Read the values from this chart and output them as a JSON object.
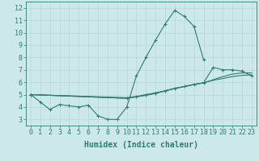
{
  "line1_x": [
    0,
    1,
    2,
    3,
    4,
    5,
    6,
    7,
    8,
    9,
    10,
    11,
    12,
    13,
    14,
    15,
    16,
    17,
    18
  ],
  "line1_y": [
    5.0,
    4.4,
    3.8,
    4.2,
    4.1,
    4.0,
    4.15,
    3.3,
    3.0,
    3.0,
    4.0,
    6.5,
    8.0,
    9.4,
    10.7,
    11.8,
    11.3,
    10.5,
    7.8
  ],
  "line2_x": [
    0,
    10,
    11,
    12,
    13,
    14,
    15,
    16,
    17,
    18,
    19,
    20,
    21,
    22,
    23
  ],
  "line2_y": [
    5.0,
    4.75,
    4.85,
    5.0,
    5.15,
    5.3,
    5.5,
    5.65,
    5.8,
    5.95,
    6.15,
    6.3,
    6.45,
    6.55,
    6.6
  ],
  "line3_x": [
    0,
    10,
    11,
    12,
    13,
    14,
    15,
    16,
    17,
    18,
    19,
    20,
    21,
    22,
    23
  ],
  "line3_y": [
    5.0,
    4.7,
    4.82,
    4.95,
    5.1,
    5.3,
    5.5,
    5.65,
    5.82,
    5.95,
    6.2,
    6.45,
    6.65,
    6.75,
    6.75
  ],
  "line4_x": [
    0,
    10,
    11,
    12,
    13,
    14,
    15,
    16,
    17,
    18,
    19,
    20,
    21,
    22,
    23
  ],
  "line4_y": [
    5.0,
    4.7,
    4.82,
    4.95,
    5.1,
    5.3,
    5.5,
    5.65,
    5.82,
    5.95,
    7.2,
    7.0,
    7.0,
    6.9,
    6.5
  ],
  "color": "#2e7d6e",
  "bg_color": "#cce8e8",
  "grid_color": "#b8d8d8",
  "xlabel": "Humidex (Indice chaleur)",
  "xlim": [
    -0.5,
    23.5
  ],
  "ylim": [
    2.5,
    12.5
  ],
  "xticks": [
    0,
    1,
    2,
    3,
    4,
    5,
    6,
    7,
    8,
    9,
    10,
    11,
    12,
    13,
    14,
    15,
    16,
    17,
    18,
    19,
    20,
    21,
    22,
    23
  ],
  "yticks": [
    3,
    4,
    5,
    6,
    7,
    8,
    9,
    10,
    11,
    12
  ],
  "marker": "+",
  "markersize": 3,
  "linewidth": 0.8,
  "xlabel_fontsize": 7,
  "tick_fontsize": 6
}
